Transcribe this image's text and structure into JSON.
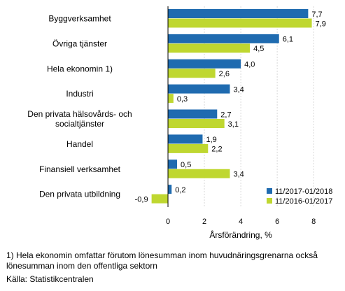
{
  "chart_data": {
    "type": "bar",
    "orientation": "horizontal",
    "categories": [
      [
        "Byggverksamhet"
      ],
      [
        "Övriga tjänster"
      ],
      [
        "Hela ekonomin 1)"
      ],
      [
        "Industri"
      ],
      [
        "Den privata hälsovårds- och",
        "socialtjänster"
      ],
      [
        "Handel"
      ],
      [
        "Finansiell verksamhet"
      ],
      [
        "Den privata utbildning"
      ]
    ],
    "series": [
      {
        "name": "11/2017-01/2018",
        "color": "#1f6bb0",
        "values": [
          7.7,
          6.1,
          4.0,
          3.4,
          2.7,
          1.9,
          0.5,
          0.2
        ],
        "labels": [
          "7,7",
          "6,1",
          "4,0",
          "3,4",
          "2,7",
          "1,9",
          "0,5",
          "0,2"
        ]
      },
      {
        "name": "11/2016-01/2017",
        "color": "#bfd730",
        "values": [
          7.9,
          4.5,
          2.6,
          0.3,
          3.1,
          2.2,
          3.4,
          -0.9
        ],
        "labels": [
          "7,9",
          "4,5",
          "2,6",
          "0,3",
          "3,1",
          "2,2",
          "3,4",
          "-0,9"
        ]
      }
    ],
    "xlim": [
      -1.5,
      9.3
    ],
    "xticks": [
      0,
      2,
      4,
      6,
      8
    ],
    "xtick_labels": [
      "0",
      "2",
      "4",
      "6",
      "8"
    ],
    "xlabel": "Årsförändring, %",
    "legend_position": "bottom-right",
    "grid": "vertical"
  },
  "footnote": "1) Hela ekonomin omfattar förutom lönesumman inom huvudnäringsgrenarna också lönesumman inom den offentliga sektorn",
  "source": "Källa: Statistikcentralen"
}
